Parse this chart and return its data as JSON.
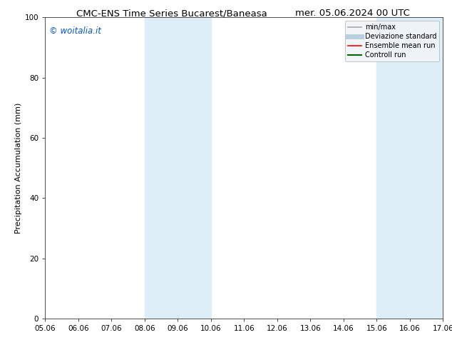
{
  "title_left": "CMC-ENS Time Series Bucarest/Baneasa",
  "title_right": "mer. 05.06.2024 00 UTC",
  "ylabel": "Precipitation Accumulation (mm)",
  "watermark": "© woitalia.it",
  "watermark_color": "#0055cc",
  "xlim_start": 0,
  "xlim_end": 12,
  "ylim": [
    0,
    100
  ],
  "yticks": [
    0,
    20,
    40,
    60,
    80,
    100
  ],
  "xtick_labels": [
    "05.06",
    "06.06",
    "07.06",
    "08.06",
    "09.06",
    "10.06",
    "11.06",
    "12.06",
    "13.06",
    "14.06",
    "15.06",
    "16.06",
    "17.06"
  ],
  "shaded_bands": [
    {
      "x_start": 3,
      "x_end": 5
    },
    {
      "x_start": 10,
      "x_end": 12
    }
  ],
  "band_color": "#ddeef8",
  "bg_color": "#ffffff",
  "plot_bg_color": "#ffffff",
  "legend_items": [
    {
      "label": "min/max",
      "color": "#aaaaaa",
      "lw": 1.2
    },
    {
      "label": "Deviazione standard",
      "color": "#b8cfe0",
      "lw": 5
    },
    {
      "label": "Ensemble mean run",
      "color": "#ff0000",
      "lw": 1.2
    },
    {
      "label": "Controll run",
      "color": "#006600",
      "lw": 1.5
    }
  ],
  "title_fontsize": 9.5,
  "axis_label_fontsize": 8,
  "tick_fontsize": 7.5,
  "legend_fontsize": 7,
  "watermark_fontsize": 8.5
}
